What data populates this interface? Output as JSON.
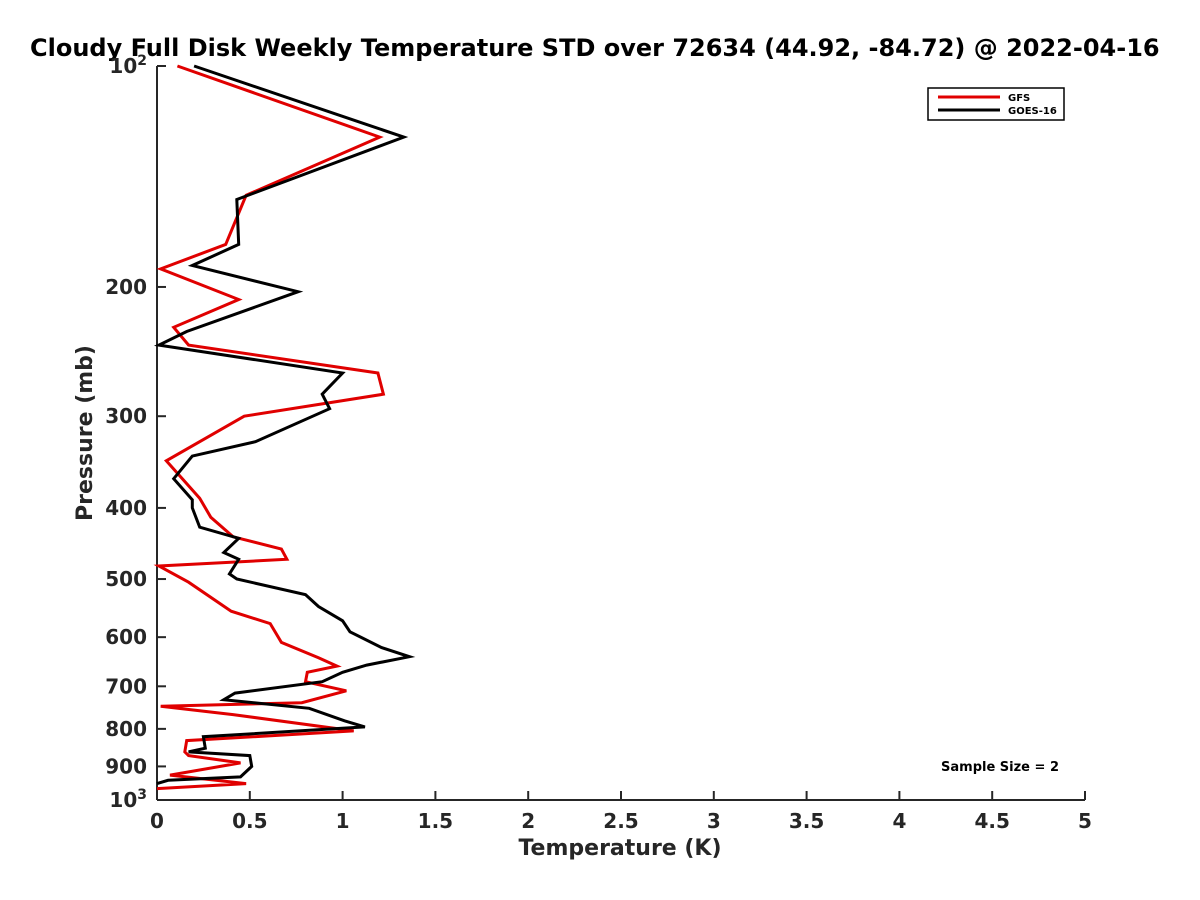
{
  "chart_data": {
    "type": "line",
    "title": "Cloudy Full Disk Weekly Temperature STD over 72634 (44.92, -84.72) @ 2022-04-16",
    "xlabel": "Temperature (K)",
    "ylabel": "Pressure (mb)",
    "xlim": [
      0,
      5
    ],
    "ylim": [
      100,
      1000
    ],
    "y_scale": "log",
    "y_reversed": true,
    "grid": false,
    "legend_position": "top-right",
    "x_ticks": [
      "0",
      "0.5",
      "1",
      "1.5",
      "2",
      "2.5",
      "3",
      "3.5",
      "4",
      "4.5",
      "5"
    ],
    "x_tick_values": [
      0,
      0.5,
      1,
      1.5,
      2,
      2.5,
      3,
      3.5,
      4,
      4.5,
      5
    ],
    "y_ticks": [
      {
        "value": 100,
        "base": "10",
        "exp": "2"
      },
      {
        "value": 200,
        "label": "200"
      },
      {
        "value": 300,
        "label": "300"
      },
      {
        "value": 400,
        "label": "400"
      },
      {
        "value": 500,
        "label": "500"
      },
      {
        "value": 600,
        "label": "600"
      },
      {
        "value": 700,
        "label": "700"
      },
      {
        "value": 800,
        "label": "800"
      },
      {
        "value": 900,
        "label": "900"
      },
      {
        "value": 1000,
        "base": "10",
        "exp": "3"
      }
    ],
    "series": [
      {
        "name": "GFS",
        "color": "#e00000",
        "points": [
          [
            0.11,
            100
          ],
          [
            1.2,
            125
          ],
          [
            0.48,
            150
          ],
          [
            0.37,
            175
          ],
          [
            0.02,
            189
          ],
          [
            0.44,
            208
          ],
          [
            0.09,
            227
          ],
          [
            0.17,
            240
          ],
          [
            1.19,
            262
          ],
          [
            1.22,
            280
          ],
          [
            0.47,
            300
          ],
          [
            0.05,
            345
          ],
          [
            0.23,
            388
          ],
          [
            0.29,
            412
          ],
          [
            0.41,
            438
          ],
          [
            0.67,
            455
          ],
          [
            0.7,
            470
          ],
          [
            0.01,
            480
          ],
          [
            0.17,
            505
          ],
          [
            0.4,
            553
          ],
          [
            0.61,
            575
          ],
          [
            0.67,
            610
          ],
          [
            0.87,
            640
          ],
          [
            0.97,
            657
          ],
          [
            0.81,
            670
          ],
          [
            0.8,
            690
          ],
          [
            1.02,
            710
          ],
          [
            0.78,
            737
          ],
          [
            0.02,
            745
          ],
          [
            0.41,
            765
          ],
          [
            1.06,
            805
          ],
          [
            0.16,
            830
          ],
          [
            0.15,
            860
          ],
          [
            0.17,
            870
          ],
          [
            0.45,
            890
          ],
          [
            0.07,
            925
          ],
          [
            0.48,
            950
          ],
          [
            0.0,
            965
          ]
        ]
      },
      {
        "name": "GOES-16",
        "color": "#000000",
        "points": [
          [
            0.2,
            100
          ],
          [
            1.33,
            125
          ],
          [
            0.43,
            152
          ],
          [
            0.44,
            175
          ],
          [
            0.19,
            187
          ],
          [
            0.76,
            203
          ],
          [
            0.16,
            230
          ],
          [
            0.01,
            240
          ],
          [
            1.0,
            262
          ],
          [
            0.89,
            280
          ],
          [
            0.93,
            293
          ],
          [
            0.53,
            325
          ],
          [
            0.19,
            340
          ],
          [
            0.09,
            365
          ],
          [
            0.19,
            390
          ],
          [
            0.19,
            400
          ],
          [
            0.23,
            425
          ],
          [
            0.44,
            440
          ],
          [
            0.36,
            460
          ],
          [
            0.44,
            470
          ],
          [
            0.39,
            492
          ],
          [
            0.43,
            500
          ],
          [
            0.8,
            525
          ],
          [
            0.87,
            545
          ],
          [
            1.0,
            570
          ],
          [
            1.04,
            590
          ],
          [
            1.21,
            620
          ],
          [
            1.36,
            638
          ],
          [
            1.13,
            655
          ],
          [
            1.0,
            670
          ],
          [
            0.89,
            690
          ],
          [
            0.42,
            715
          ],
          [
            0.36,
            730
          ],
          [
            0.82,
            750
          ],
          [
            1.01,
            780
          ],
          [
            1.12,
            795
          ],
          [
            0.25,
            820
          ],
          [
            0.26,
            850
          ],
          [
            0.17,
            860
          ],
          [
            0.5,
            870
          ],
          [
            0.51,
            900
          ],
          [
            0.45,
            930
          ],
          [
            0.06,
            940
          ],
          [
            0.0,
            950
          ]
        ]
      }
    ],
    "annotations": [
      {
        "text": "Sample Size = 2",
        "position": "bottom-right"
      }
    ]
  }
}
